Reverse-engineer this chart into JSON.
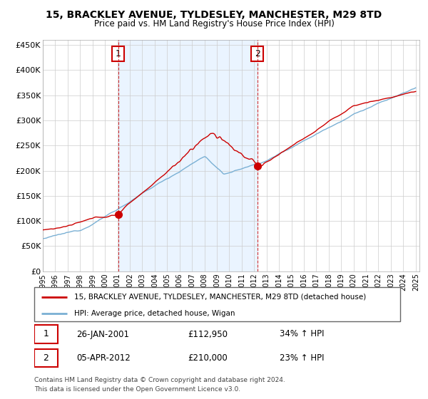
{
  "title": "15, BRACKLEY AVENUE, TYLDESLEY, MANCHESTER, M29 8TD",
  "subtitle": "Price paid vs. HM Land Registry's House Price Index (HPI)",
  "legend_line1": "15, BRACKLEY AVENUE, TYLDESLEY, MANCHESTER, M29 8TD (detached house)",
  "legend_line2": "HPI: Average price, detached house, Wigan",
  "annotation1_date": "26-JAN-2001",
  "annotation1_price": "£112,950",
  "annotation1_hpi": "34% ↑ HPI",
  "annotation2_date": "05-APR-2012",
  "annotation2_price": "£210,000",
  "annotation2_hpi": "23% ↑ HPI",
  "footnote1": "Contains HM Land Registry data © Crown copyright and database right 2024.",
  "footnote2": "This data is licensed under the Open Government Licence v3.0.",
  "sale_color": "#cc0000",
  "hpi_color": "#7ab0d4",
  "vline_color": "#cc0000",
  "shade_color": "#ddeeff",
  "ylim": [
    0,
    460000
  ],
  "yticks": [
    0,
    50000,
    100000,
    150000,
    200000,
    250000,
    300000,
    350000,
    400000,
    450000
  ],
  "background_color": "#ffffff",
  "grid_color": "#cccccc",
  "sale1_x": 2001.07,
  "sale2_x": 2012.26,
  "xstart": 1995,
  "xend": 2025
}
